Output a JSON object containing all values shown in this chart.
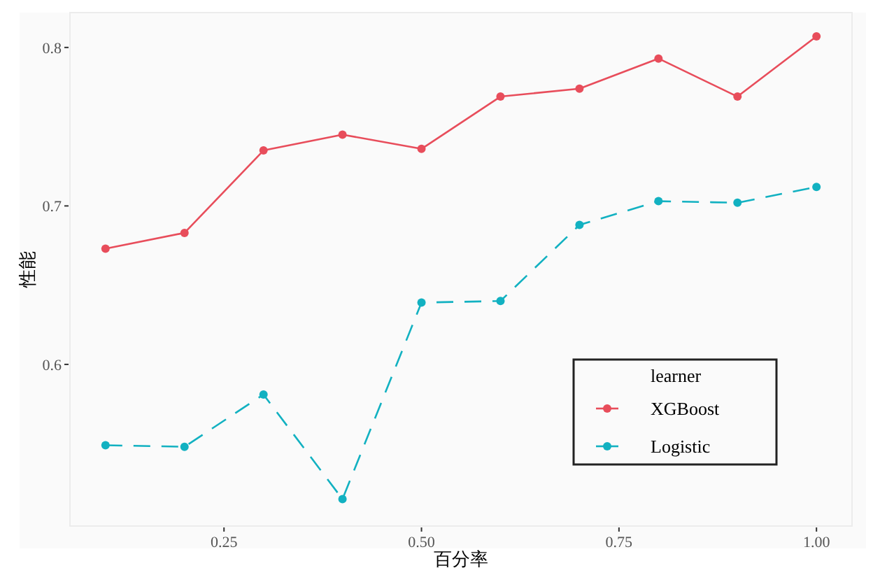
{
  "chart_data": {
    "type": "line",
    "xlabel": "百分率",
    "ylabel": "性能",
    "legend_title": "learner",
    "legend": "bottom right",
    "marker": "circle",
    "grid": false,
    "x": [
      0.1,
      0.2,
      0.3,
      0.4,
      0.5,
      0.6,
      0.7,
      0.8,
      0.9,
      1.0
    ],
    "xlim": [
      0.055,
      1.045
    ],
    "xticks": [
      {
        "value": 0.25,
        "label": "0.25"
      },
      {
        "value": 0.5,
        "label": "0.50"
      },
      {
        "value": 0.75,
        "label": "0.75"
      },
      {
        "value": 1,
        "label": "1.00"
      }
    ],
    "ylim": [
      0.498,
      0.822
    ],
    "yticks": [
      0.6,
      0.7,
      0.8
    ],
    "series": [
      {
        "name": "XGBoost",
        "color": "#e84d5b",
        "line_style": "solid",
        "values": [
          0.673,
          0.683,
          0.735,
          0.745,
          0.736,
          0.769,
          0.774,
          0.793,
          0.769,
          0.807
        ]
      },
      {
        "name": "Logistic",
        "color": "#12b1c1",
        "line_style": "dashed",
        "values": [
          0.549,
          0.548,
          0.581,
          0.515,
          0.639,
          0.64,
          0.688,
          0.703,
          0.702,
          0.712
        ]
      }
    ]
  }
}
